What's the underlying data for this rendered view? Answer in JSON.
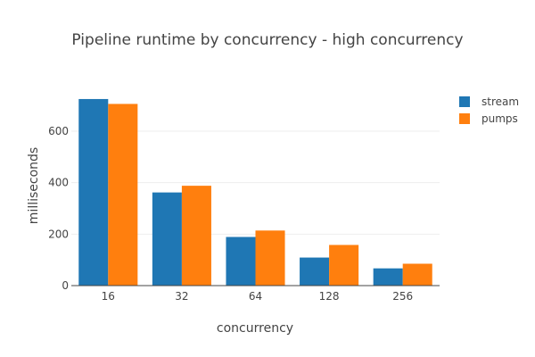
{
  "chart_data": {
    "type": "bar",
    "title": "Pipeline runtime by concurrency - high concurrency",
    "xlabel": "concurrency",
    "ylabel": "milliseconds",
    "categories": [
      "16",
      "32",
      "64",
      "128",
      "256"
    ],
    "series": [
      {
        "name": "stream",
        "color": "#1f77b4",
        "values": [
          725,
          362,
          189,
          109,
          67
        ]
      },
      {
        "name": "pumps",
        "color": "#ff7f0e",
        "values": [
          706,
          388,
          214,
          158,
          85
        ]
      }
    ],
    "ylim": [
      0,
      763
    ],
    "yticks": [
      0,
      200,
      400,
      600
    ],
    "grid": true,
    "legend_position": "top-right"
  }
}
